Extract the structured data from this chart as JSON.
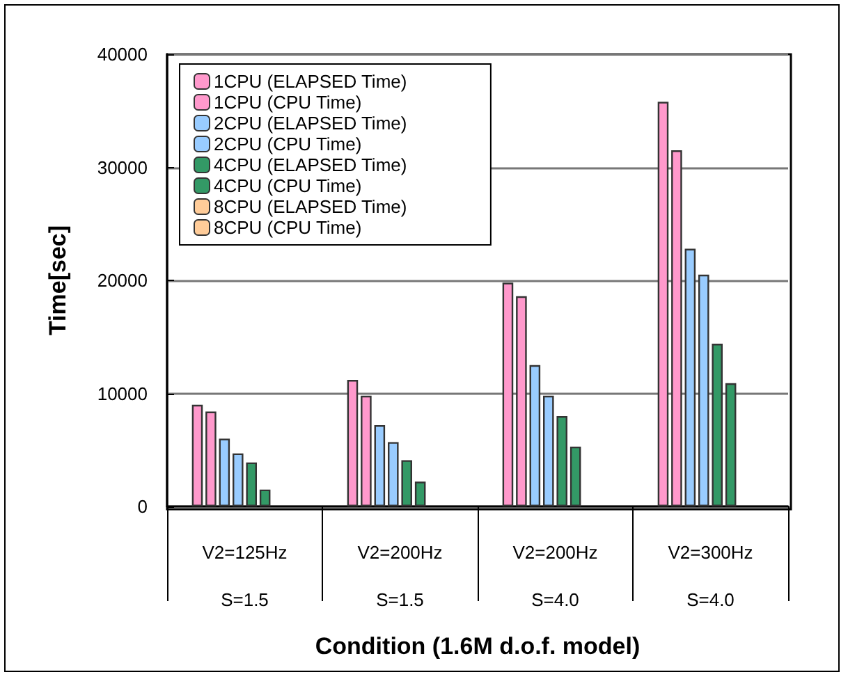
{
  "chart_data": {
    "type": "bar",
    "xlabel": "Condition (1.6M d.o.f. model)",
    "ylabel": "Time[sec]",
    "categories": [
      "V2=125Hz\nS=1.5",
      "V2=200Hz\nS=1.5",
      "V2=200Hz\nS=4.0",
      "V2=300Hz\nS=4.0"
    ],
    "series": [
      {
        "name": "1CPU (ELAPSED Time)",
        "color": "#ff99cc",
        "values": [
          9000,
          11200,
          19800,
          35800
        ]
      },
      {
        "name": "1CPU (CPU Time)",
        "color": "#ff99cc",
        "values": [
          8400,
          9800,
          18600,
          31500
        ]
      },
      {
        "name": "2CPU (ELAPSED Time)",
        "color": "#99ccff",
        "values": [
          6000,
          7200,
          12500,
          22800
        ]
      },
      {
        "name": "2CPU (CPU Time)",
        "color": "#99ccff",
        "values": [
          4700,
          5700,
          9800,
          20500
        ]
      },
      {
        "name": "4CPU (ELAPSED Time)",
        "color": "#339966",
        "values": [
          3900,
          4100,
          8000,
          14400
        ]
      },
      {
        "name": "4CPU (CPU Time)",
        "color": "#339966",
        "values": [
          1500,
          2200,
          5300,
          10900
        ]
      },
      {
        "name": "8CPU (ELAPSED Time)",
        "color": "#ffcc99",
        "values": [
          null,
          null,
          null,
          null
        ]
      },
      {
        "name": "8CPU (CPU Time)",
        "color": "#ffcc99",
        "values": [
          null,
          null,
          null,
          null
        ]
      }
    ],
    "ylim": [
      0,
      40000
    ],
    "yticks": [
      0,
      10000,
      20000,
      30000,
      40000
    ],
    "grid": "y",
    "legend": "top left"
  }
}
